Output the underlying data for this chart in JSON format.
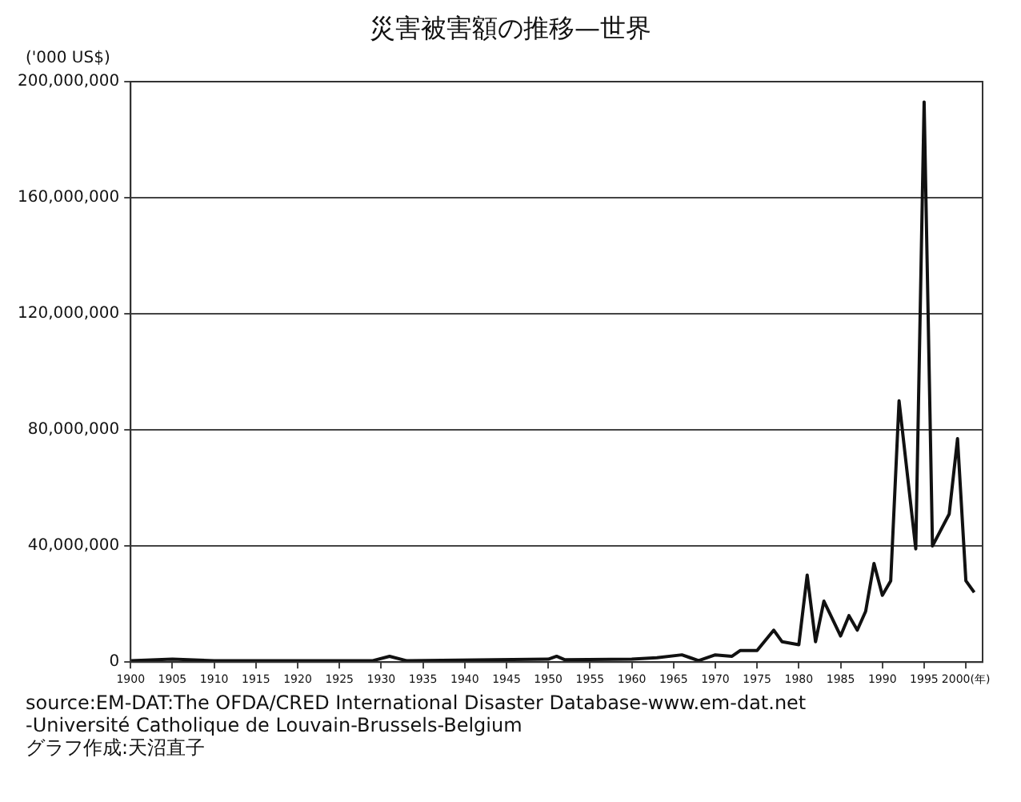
{
  "chart_data": {
    "type": "line",
    "title": "災害被害額の推移—世界",
    "ylabel": "('000 US$)",
    "x": [
      1900,
      1905,
      1910,
      1920,
      1929,
      1931,
      1933,
      1950,
      1951,
      1952,
      1960,
      1963,
      1966,
      1967,
      1968,
      1970,
      1972,
      1973,
      1975,
      1977,
      1978,
      1980,
      1981,
      1982,
      1983,
      1985,
      1986,
      1987,
      1988,
      1989,
      1990,
      1991,
      1992,
      1994,
      1995,
      1996,
      1998,
      1999,
      2000,
      2001
    ],
    "series": [
      {
        "color": "#111111",
        "values": [
          500000,
          1000000,
          500000,
          500000,
          500000,
          2000000,
          500000,
          1000000,
          2000000,
          800000,
          1000000,
          1500000,
          2500000,
          1500000,
          500000,
          2500000,
          2000000,
          4000000,
          4000000,
          11000000,
          7000000,
          6000000,
          30000000,
          7000000,
          21000000,
          9000000,
          16000000,
          11000000,
          17500000,
          34000000,
          23000000,
          28000000,
          90000000,
          39000000,
          193000000,
          40000000,
          51000000,
          77000000,
          28000000,
          24000000
        ]
      }
    ],
    "xlim": [
      1900,
      2002
    ],
    "xticks": [
      1900,
      1905,
      1910,
      1915,
      1920,
      1925,
      1930,
      1935,
      1940,
      1945,
      1950,
      1955,
      1960,
      1965,
      1970,
      1975,
      1980,
      1985,
      1990,
      1995,
      {
        "value": 2000,
        "label": "2000(年)"
      }
    ],
    "ylim": [
      0,
      200000000
    ],
    "yticks": [
      0,
      {
        "value": 40000000,
        "label": "40,000,000"
      },
      {
        "value": 80000000,
        "label": "80,000,000"
      },
      {
        "value": 120000000,
        "label": "120,000,000"
      },
      {
        "value": 160000000,
        "label": "160,000,000"
      },
      {
        "value": 200000000,
        "label": "200,000,000"
      }
    ],
    "grid": "y",
    "legend": false,
    "marker": "none",
    "line_style": "solid",
    "annotations": [
      "source:EM-DAT:The OFDA/CRED International Disaster Database-www.em-dat.net",
      "-Université Catholique de Louvain-Brussels-Belgium",
      "グラフ作成:天沼直子"
    ]
  }
}
